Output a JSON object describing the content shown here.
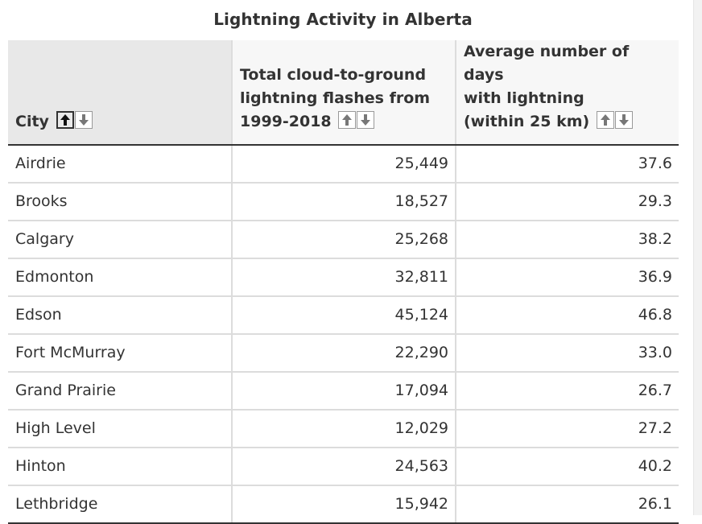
{
  "caption": "Lightning Activity in Alberta",
  "columns": [
    {
      "label": "City",
      "lines": [
        "City"
      ]
    },
    {
      "label": "Total cloud-to-ground lightning flashes from 1999-2018",
      "lines": [
        "Total cloud-to-ground",
        "lightning flashes from",
        "1999-2018"
      ]
    },
    {
      "label": "Average number of days with lightning (within 25 km)",
      "lines": [
        "Average number of days",
        "with lightning",
        "(within 25 km)"
      ]
    }
  ],
  "sort": {
    "column": "City",
    "direction": "ascending",
    "up_icon": "arrow-up-icon",
    "down_icon": "arrow-down-icon"
  },
  "rows": [
    {
      "city": "Airdrie",
      "flashes": "25,449",
      "days": "37.6"
    },
    {
      "city": "Brooks",
      "flashes": "18,527",
      "days": "29.3"
    },
    {
      "city": "Calgary",
      "flashes": "25,268",
      "days": "38.2"
    },
    {
      "city": "Edmonton",
      "flashes": "32,811",
      "days": "36.9"
    },
    {
      "city": "Edson",
      "flashes": "45,124",
      "days": "46.8"
    },
    {
      "city": "Fort McMurray",
      "flashes": "22,290",
      "days": "33.0"
    },
    {
      "city": "Grand Prairie",
      "flashes": "17,094",
      "days": "26.7"
    },
    {
      "city": "High Level",
      "flashes": "12,029",
      "days": "27.2"
    },
    {
      "city": "Hinton",
      "flashes": "24,563",
      "days": "40.2"
    },
    {
      "city": "Lethbridge",
      "flashes": "15,942",
      "days": "26.1"
    }
  ],
  "colors": {
    "text": "#333333",
    "header_bg": "#f7f7f7",
    "sorted_header_bg": "#e8e8e8",
    "grid": "#dcdcdc",
    "rule": "#333333"
  }
}
